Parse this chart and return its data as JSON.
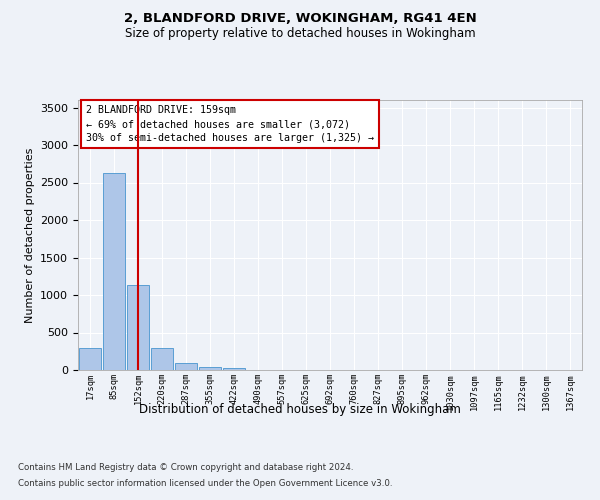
{
  "title1": "2, BLANDFORD DRIVE, WOKINGHAM, RG41 4EN",
  "title2": "Size of property relative to detached houses in Wokingham",
  "xlabel": "Distribution of detached houses by size in Wokingham",
  "ylabel": "Number of detached properties",
  "annotation_line1": "2 BLANDFORD DRIVE: 159sqm",
  "annotation_line2": "← 69% of detached houses are smaller (3,072)",
  "annotation_line3": "30% of semi-detached houses are larger (1,325) →",
  "footer1": "Contains HM Land Registry data © Crown copyright and database right 2024.",
  "footer2": "Contains public sector information licensed under the Open Government Licence v3.0.",
  "bin_labels": [
    "17sqm",
    "85sqm",
    "152sqm",
    "220sqm",
    "287sqm",
    "355sqm",
    "422sqm",
    "490sqm",
    "557sqm",
    "625sqm",
    "692sqm",
    "760sqm",
    "827sqm",
    "895sqm",
    "962sqm",
    "1030sqm",
    "1097sqm",
    "1165sqm",
    "1232sqm",
    "1300sqm",
    "1367sqm"
  ],
  "bar_values": [
    290,
    2630,
    1140,
    300,
    90,
    40,
    30,
    0,
    0,
    0,
    0,
    0,
    0,
    0,
    0,
    0,
    0,
    0,
    0,
    0,
    0
  ],
  "bar_color": "#aec6e8",
  "bar_edge_color": "#5a9fd4",
  "property_line_x": 2.0,
  "property_line_color": "#cc0000",
  "ylim": [
    0,
    3600
  ],
  "yticks": [
    0,
    500,
    1000,
    1500,
    2000,
    2500,
    3000,
    3500
  ],
  "background_color": "#eef2f8",
  "grid_color": "#ffffff",
  "annotation_box_color": "#ffffff",
  "annotation_box_edge": "#cc0000"
}
